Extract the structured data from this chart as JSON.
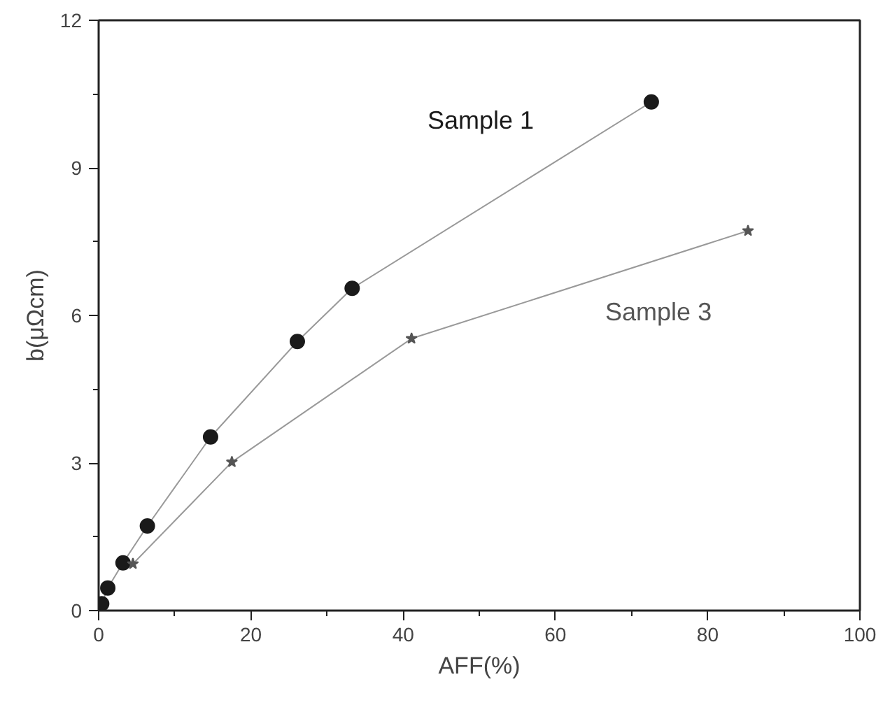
{
  "chart_data": {
    "type": "line",
    "xlabel": "AFF(%)",
    "ylabel": "b(μΩcm)",
    "xlim": [
      0,
      100
    ],
    "ylim": [
      0,
      12
    ],
    "xticks": [
      0,
      20,
      40,
      60,
      80,
      100
    ],
    "yticks": [
      0,
      3,
      6,
      9,
      12
    ],
    "grid": false,
    "series": [
      {
        "name": "Sample 1",
        "color": "#1a1a1a",
        "marker": "circle",
        "x": [
          0.4,
          1.2,
          3.2,
          6.4,
          14.7,
          26.1,
          33.3,
          72.6
        ],
        "values": [
          0.14,
          0.46,
          0.97,
          1.72,
          3.53,
          5.47,
          6.55,
          10.34
        ]
      },
      {
        "name": "Sample 3",
        "color": "#555555",
        "marker": "star",
        "x": [
          4.5,
          17.5,
          41.1,
          85.3
        ],
        "values": [
          0.95,
          3.02,
          5.53,
          7.72
        ]
      }
    ]
  }
}
